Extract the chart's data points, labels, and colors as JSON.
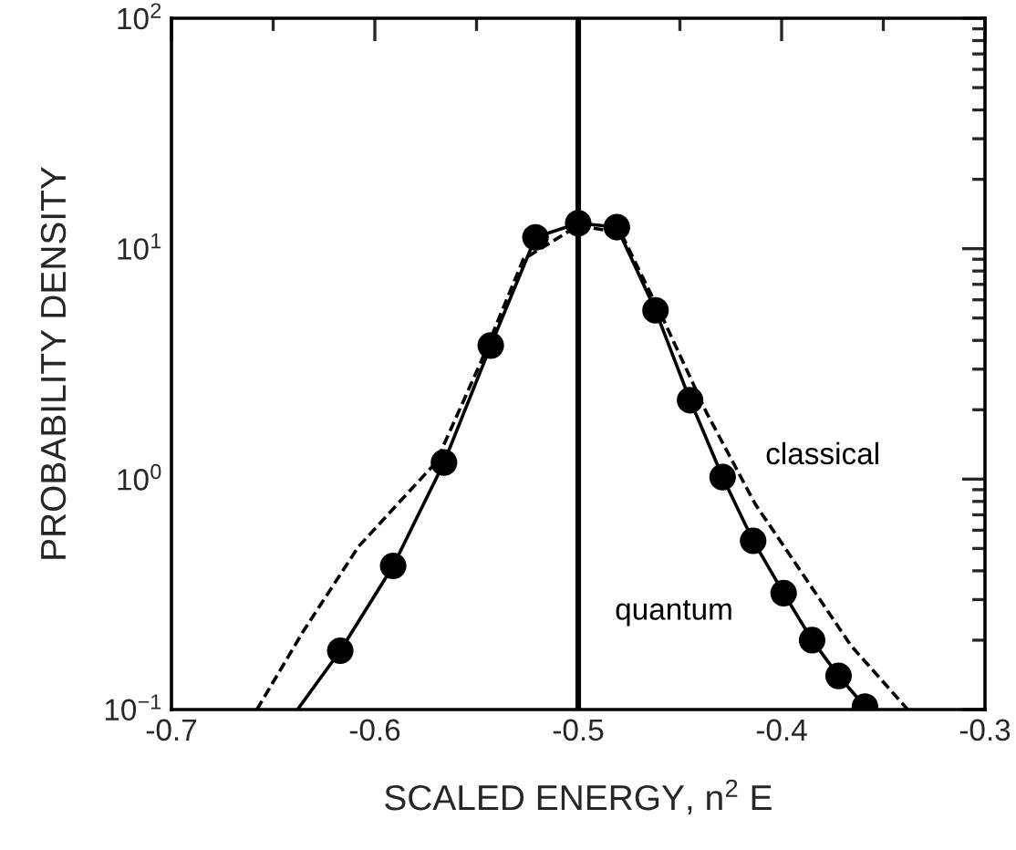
{
  "chart_data": {
    "type": "line",
    "xlabel": "SCALED ENERGY, n$^{2}$ E",
    "ylabel": "PROBABILITY DENSITY",
    "log": "y",
    "xlim": [
      -0.7,
      -0.3
    ],
    "ylim": [
      0.1,
      100
    ],
    "xticks": [
      -0.7,
      -0.6,
      -0.5,
      -0.4,
      -0.3
    ],
    "yticks": [
      {
        "value": 0.1,
        "label": "10$^{−1}$"
      },
      {
        "value": 1,
        "label": "10$^{0}$"
      },
      {
        "value": 10,
        "label": "10$^{1}$"
      },
      {
        "value": 100,
        "label": "10$^{2}$"
      }
    ],
    "grid": false,
    "legend": false,
    "ref_lines": [
      {
        "axis": "x",
        "value": -0.5,
        "color": "#000000"
      }
    ],
    "series": [
      {
        "name": "classical",
        "line_style": "dashed",
        "marker": "none",
        "color": "#000000",
        "x": [
          -0.658,
          -0.635,
          -0.608,
          -0.57,
          -0.548,
          -0.527,
          -0.5,
          -0.479,
          -0.458,
          -0.437,
          -0.413,
          -0.389,
          -0.366,
          -0.338
        ],
        "values": [
          0.1,
          0.22,
          0.51,
          1.18,
          3.2,
          9.0,
          12.6,
          11.7,
          4.9,
          1.95,
          0.78,
          0.38,
          0.19,
          0.1
        ]
      },
      {
        "name": "quantum",
        "line_style": "solid",
        "marker": "none",
        "color": "#000000",
        "x": [
          -0.638,
          -0.617,
          -0.591,
          -0.566,
          -0.543,
          -0.521,
          -0.5,
          -0.481,
          -0.462,
          -0.445,
          -0.429,
          -0.414,
          -0.399,
          -0.385,
          -0.372,
          -0.359
        ],
        "values": [
          0.1,
          0.18,
          0.42,
          1.18,
          3.8,
          11.2,
          12.9,
          12.4,
          5.4,
          2.2,
          1.02,
          0.54,
          0.32,
          0.2,
          0.14,
          0.103
        ]
      },
      {
        "type": "scatter",
        "marker": "circle",
        "color": "#000000",
        "x": [
          -0.617,
          -0.591,
          -0.566,
          -0.543,
          -0.521,
          -0.5,
          -0.481,
          -0.462,
          -0.445,
          -0.429,
          -0.414,
          -0.399,
          -0.385,
          -0.372,
          -0.359
        ],
        "values": [
          0.18,
          0.42,
          1.18,
          3.8,
          11.2,
          12.9,
          12.4,
          5.4,
          2.2,
          1.02,
          0.54,
          0.32,
          0.2,
          0.14,
          0.103
        ]
      }
    ]
  }
}
